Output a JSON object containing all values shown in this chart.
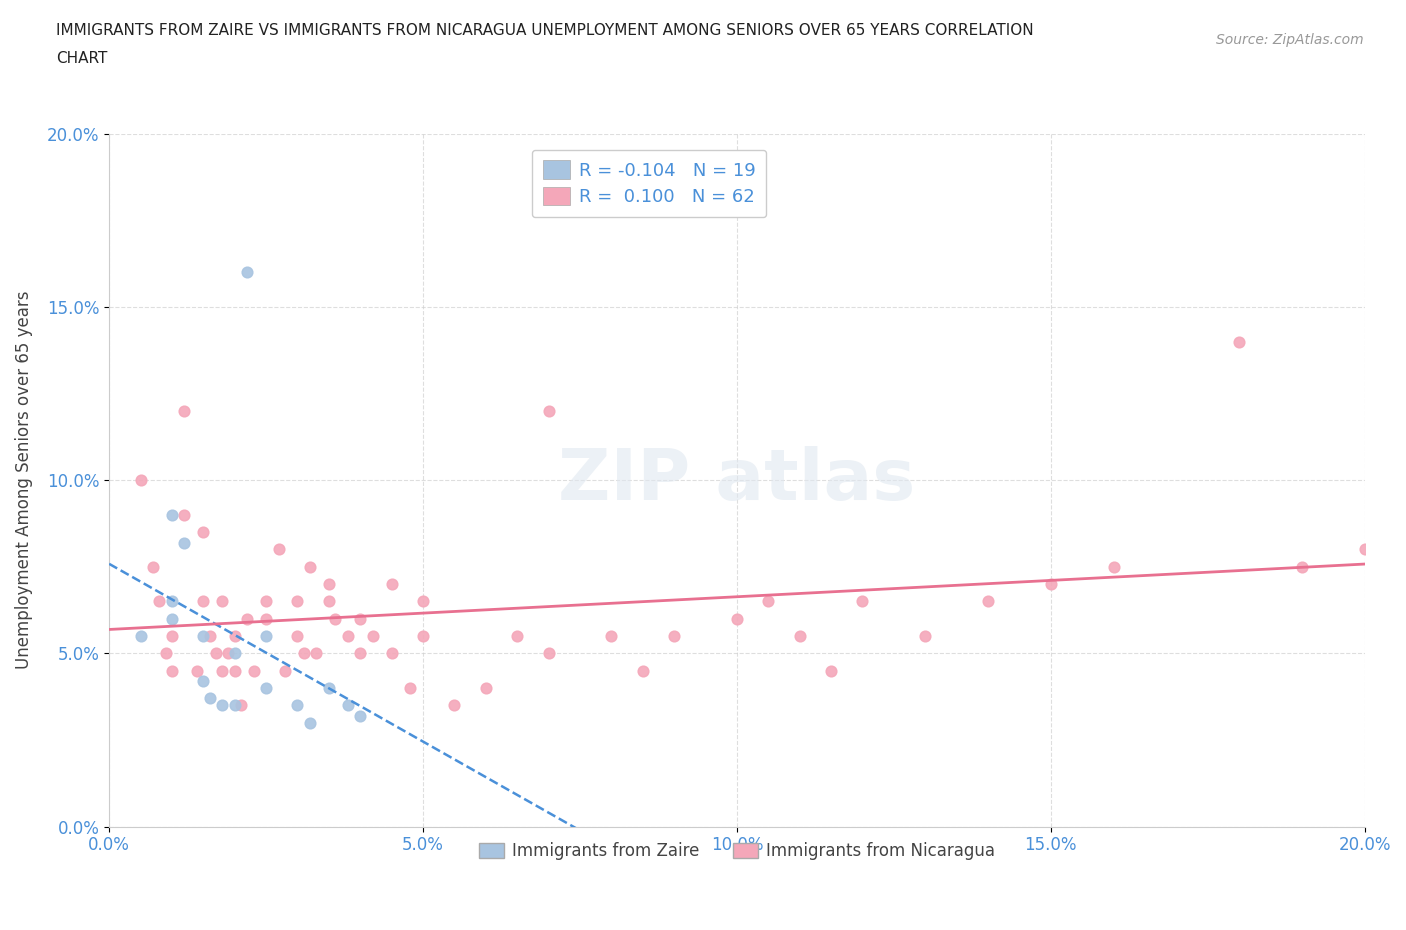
{
  "title_line1": "IMMIGRANTS FROM ZAIRE VS IMMIGRANTS FROM NICARAGUA UNEMPLOYMENT AMONG SENIORS OVER 65 YEARS CORRELATION",
  "title_line2": "CHART",
  "source": "Source: ZipAtlas.com",
  "ylabel": "Unemployment Among Seniors over 65 years",
  "xlim": [
    0.0,
    0.2
  ],
  "ylim": [
    0.0,
    0.2
  ],
  "xticks": [
    0.0,
    0.05,
    0.1,
    0.15,
    0.2
  ],
  "yticks": [
    0.0,
    0.05,
    0.1,
    0.15,
    0.2
  ],
  "xtick_labels": [
    "0.0%",
    "5.0%",
    "10.0%",
    "15.0%",
    "20.0%"
  ],
  "ytick_labels": [
    "0.0%",
    "5.0%",
    "10.0%",
    "15.0%",
    "20.0%"
  ],
  "zaire_color": "#a8c4e0",
  "nicaragua_color": "#f4a7b9",
  "zaire_line_color": "#4a90d9",
  "nicaragua_line_color": "#e87090",
  "legend_r_zaire": "R = -0.104   N = 19",
  "legend_r_nicaragua": "R =  0.100   N = 62",
  "zaire_points_x": [
    0.005,
    0.01,
    0.01,
    0.01,
    0.012,
    0.015,
    0.015,
    0.016,
    0.018,
    0.02,
    0.02,
    0.022,
    0.025,
    0.025,
    0.03,
    0.032,
    0.035,
    0.038,
    0.04
  ],
  "zaire_points_y": [
    0.055,
    0.06,
    0.065,
    0.09,
    0.082,
    0.055,
    0.042,
    0.037,
    0.035,
    0.05,
    0.035,
    0.16,
    0.055,
    0.04,
    0.035,
    0.03,
    0.04,
    0.035,
    0.032
  ],
  "nicaragua_points_x": [
    0.005,
    0.007,
    0.008,
    0.009,
    0.01,
    0.01,
    0.012,
    0.012,
    0.014,
    0.015,
    0.015,
    0.016,
    0.017,
    0.018,
    0.018,
    0.019,
    0.02,
    0.02,
    0.021,
    0.022,
    0.023,
    0.025,
    0.025,
    0.027,
    0.028,
    0.03,
    0.03,
    0.031,
    0.032,
    0.033,
    0.035,
    0.035,
    0.036,
    0.038,
    0.04,
    0.04,
    0.042,
    0.045,
    0.045,
    0.048,
    0.05,
    0.05,
    0.055,
    0.06,
    0.065,
    0.07,
    0.07,
    0.08,
    0.085,
    0.09,
    0.1,
    0.105,
    0.11,
    0.115,
    0.12,
    0.13,
    0.14,
    0.15,
    0.16,
    0.18,
    0.19,
    0.2
  ],
  "nicaragua_points_y": [
    0.1,
    0.075,
    0.065,
    0.05,
    0.055,
    0.045,
    0.12,
    0.09,
    0.045,
    0.085,
    0.065,
    0.055,
    0.05,
    0.045,
    0.065,
    0.05,
    0.055,
    0.045,
    0.035,
    0.06,
    0.045,
    0.065,
    0.06,
    0.08,
    0.045,
    0.065,
    0.055,
    0.05,
    0.075,
    0.05,
    0.065,
    0.07,
    0.06,
    0.055,
    0.06,
    0.05,
    0.055,
    0.07,
    0.05,
    0.04,
    0.065,
    0.055,
    0.035,
    0.04,
    0.055,
    0.05,
    0.12,
    0.055,
    0.045,
    0.055,
    0.06,
    0.065,
    0.055,
    0.045,
    0.065,
    0.055,
    0.065,
    0.07,
    0.075,
    0.14,
    0.075,
    0.08
  ],
  "background_color": "#ffffff",
  "grid_color": "#d0d0d0",
  "text_color_blue": "#4a90d9",
  "text_color_dark": "#222222"
}
